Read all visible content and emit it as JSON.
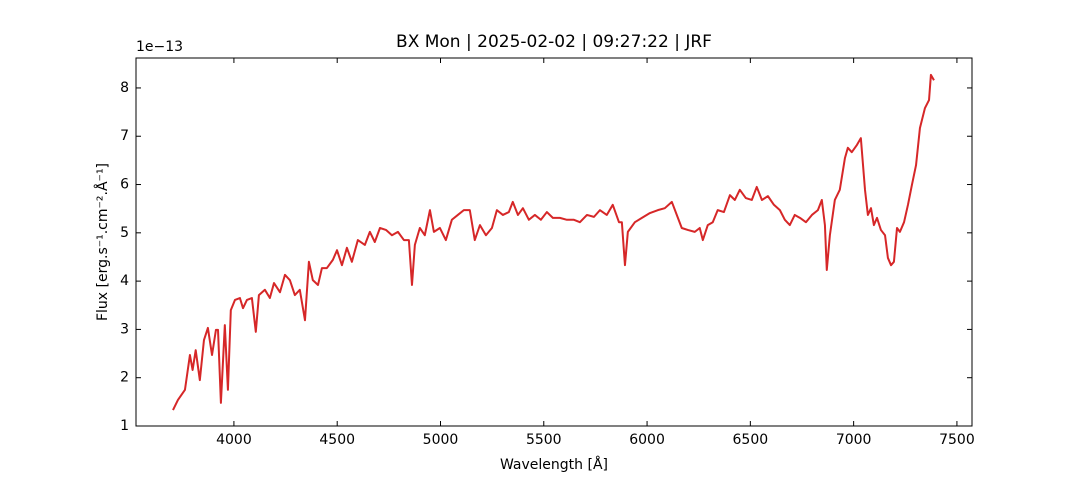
{
  "chart_data": {
    "type": "line",
    "title": "BX Mon | 2025-02-02 | 09:27:22 | JRF",
    "x_label": "Wavelength [Å]",
    "y_label": "Flux [erg.s⁻¹.cm⁻².Å⁻¹]",
    "y_offset_label": "1e−13",
    "x": [
      3705,
      3729,
      3763,
      3787,
      3800,
      3815,
      3835,
      3855,
      3874,
      3894,
      3913,
      3923,
      3937,
      3956,
      3971,
      3985,
      4005,
      4029,
      4044,
      4063,
      4087,
      4106,
      4121,
      4150,
      4174,
      4194,
      4223,
      4247,
      4271,
      4295,
      4319,
      4344,
      4363,
      4382,
      4407,
      4426,
      4450,
      4479,
      4499,
      4523,
      4547,
      4571,
      4600,
      4634,
      4658,
      4682,
      4707,
      4736,
      4765,
      4794,
      4823,
      4847,
      4862,
      4876,
      4900,
      4924,
      4949,
      4968,
      4997,
      5026,
      5055,
      5084,
      5113,
      5142,
      5166,
      5191,
      5220,
      5249,
      5273,
      5302,
      5331,
      5350,
      5375,
      5399,
      5428,
      5457,
      5486,
      5515,
      5544,
      5578,
      5612,
      5646,
      5675,
      5709,
      5743,
      5772,
      5805,
      5834,
      5864,
      5878,
      5893,
      5907,
      5941,
      5975,
      6014,
      6052,
      6086,
      6120,
      6144,
      6168,
      6197,
      6231,
      6255,
      6270,
      6294,
      6318,
      6342,
      6372,
      6401,
      6425,
      6449,
      6478,
      6507,
      6531,
      6556,
      6585,
      6614,
      6643,
      6667,
      6691,
      6715,
      6740,
      6769,
      6798,
      6827,
      6846,
      6861,
      6870,
      6885,
      6909,
      6933,
      6958,
      6972,
      6991,
      7016,
      7035,
      7055,
      7069,
      7084,
      7098,
      7113,
      7132,
      7152,
      7166,
      7181,
      7195,
      7210,
      7224,
      7244,
      7263,
      7282,
      7302,
      7321,
      7345,
      7365,
      7374,
      7389
    ],
    "series": [
      {
        "color": "#d62728",
        "values": [
          1.33,
          1.54,
          1.75,
          2.47,
          2.16,
          2.57,
          1.95,
          2.78,
          3.03,
          2.47,
          2.99,
          2.99,
          1.48,
          3.09,
          1.75,
          3.4,
          3.61,
          3.65,
          3.44,
          3.61,
          3.65,
          2.95,
          3.71,
          3.82,
          3.65,
          3.96,
          3.77,
          4.13,
          4.02,
          3.71,
          3.82,
          3.19,
          4.4,
          4.02,
          3.92,
          4.27,
          4.27,
          4.44,
          4.64,
          4.33,
          4.69,
          4.4,
          4.85,
          4.75,
          5.02,
          4.81,
          5.1,
          5.06,
          4.95,
          5.02,
          4.85,
          4.85,
          3.92,
          4.75,
          5.1,
          4.95,
          5.47,
          5.02,
          5.1,
          4.85,
          5.27,
          5.37,
          5.47,
          5.47,
          4.85,
          5.16,
          4.95,
          5.1,
          5.47,
          5.37,
          5.43,
          5.64,
          5.37,
          5.51,
          5.27,
          5.37,
          5.27,
          5.43,
          5.31,
          5.31,
          5.27,
          5.27,
          5.22,
          5.37,
          5.33,
          5.47,
          5.37,
          5.58,
          5.22,
          5.22,
          4.33,
          5.02,
          5.22,
          5.31,
          5.41,
          5.47,
          5.51,
          5.64,
          5.37,
          5.1,
          5.06,
          5.02,
          5.1,
          4.85,
          5.16,
          5.22,
          5.47,
          5.43,
          5.78,
          5.68,
          5.89,
          5.72,
          5.68,
          5.95,
          5.68,
          5.76,
          5.58,
          5.47,
          5.27,
          5.16,
          5.37,
          5.31,
          5.22,
          5.37,
          5.47,
          5.68,
          5.16,
          4.23,
          4.95,
          5.68,
          5.89,
          6.55,
          6.76,
          6.67,
          6.82,
          6.96,
          5.89,
          5.37,
          5.51,
          5.16,
          5.31,
          5.06,
          4.95,
          4.48,
          4.33,
          4.4,
          5.1,
          5.02,
          5.22,
          5.58,
          5.99,
          6.4,
          7.17,
          7.58,
          7.75,
          8.27,
          8.16
        ]
      }
    ],
    "xlim": [
      3526,
      7573
    ],
    "ylim": [
      1.0,
      8.62
    ],
    "xticks": [
      4000,
      4500,
      5000,
      5500,
      6000,
      6500,
      7000,
      7500
    ],
    "yticks": [
      1,
      2,
      3,
      4,
      5,
      6,
      7,
      8
    ],
    "grid": false
  }
}
